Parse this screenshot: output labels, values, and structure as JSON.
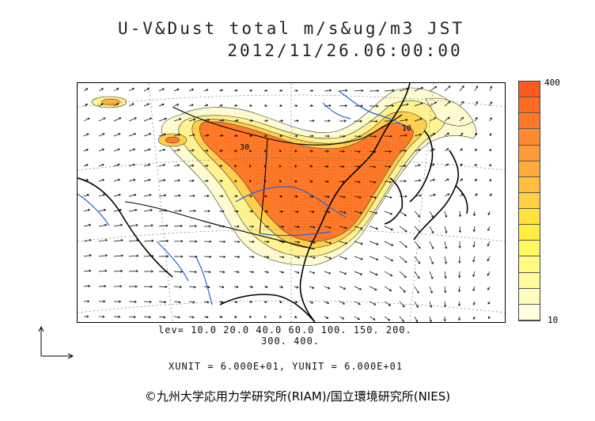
{
  "title": {
    "line1": "U-V&Dust total m/s&ug/m3 JST",
    "line2": "2012/11/26.06:00:00"
  },
  "colorbar": {
    "max_label": "400",
    "min_label": "10",
    "colors": [
      "#ff5a1e",
      "#ff6a22",
      "#ff7a28",
      "#ff8a30",
      "#ff9a38",
      "#ffac3c",
      "#ffbe40",
      "#ffd040",
      "#ffe23c",
      "#fff040",
      "#fff860",
      "#fffa80",
      "#fffca0",
      "#fffdc0",
      "#ffffe0"
    ]
  },
  "levels": {
    "line1": "lev= 10.0 20.0 40.0 60.0 100. 150. 200.",
    "line2": "300. 400."
  },
  "units": "XUNIT = 6.000E+01, YUNIT = 6.000E+01",
  "footer": "©九州大学応用力学研究所(RIAM)/国立環境研究所(NIES)",
  "contour_labels": [
    "30",
    "10"
  ]
}
